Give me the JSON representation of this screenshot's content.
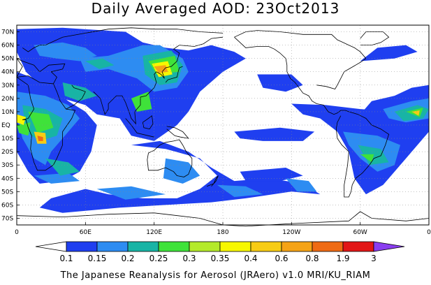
{
  "title": "Daily Averaged AOD: 23Oct2013",
  "footer": "The Japanese Reanalysis for Aerosol (JRAero) v1.0 MRI/KU_RIAM",
  "lat_ticks": [
    "70N",
    "60N",
    "50N",
    "40N",
    "30N",
    "20N",
    "10N",
    "EQ",
    "10S",
    "20S",
    "30S",
    "40S",
    "50S",
    "60S",
    "70S"
  ],
  "lon_ticks": [
    "0",
    "60E",
    "120E",
    "180",
    "120W",
    "60W",
    "0"
  ],
  "colorbar": {
    "levels": [
      "0.1",
      "0.15",
      "0.2",
      "0.25",
      "0.3",
      "0.35",
      "0.4",
      "0.6",
      "0.8",
      "1.9",
      "3"
    ],
    "colors": [
      "#ffffff",
      "#1f3ff0",
      "#2d8cf2",
      "#18b4a5",
      "#3fe23a",
      "#b4ea2a",
      "#f7f700",
      "#f7cc14",
      "#f5a316",
      "#ef6b14",
      "#e21616",
      "#8a3ef0"
    ]
  }
}
